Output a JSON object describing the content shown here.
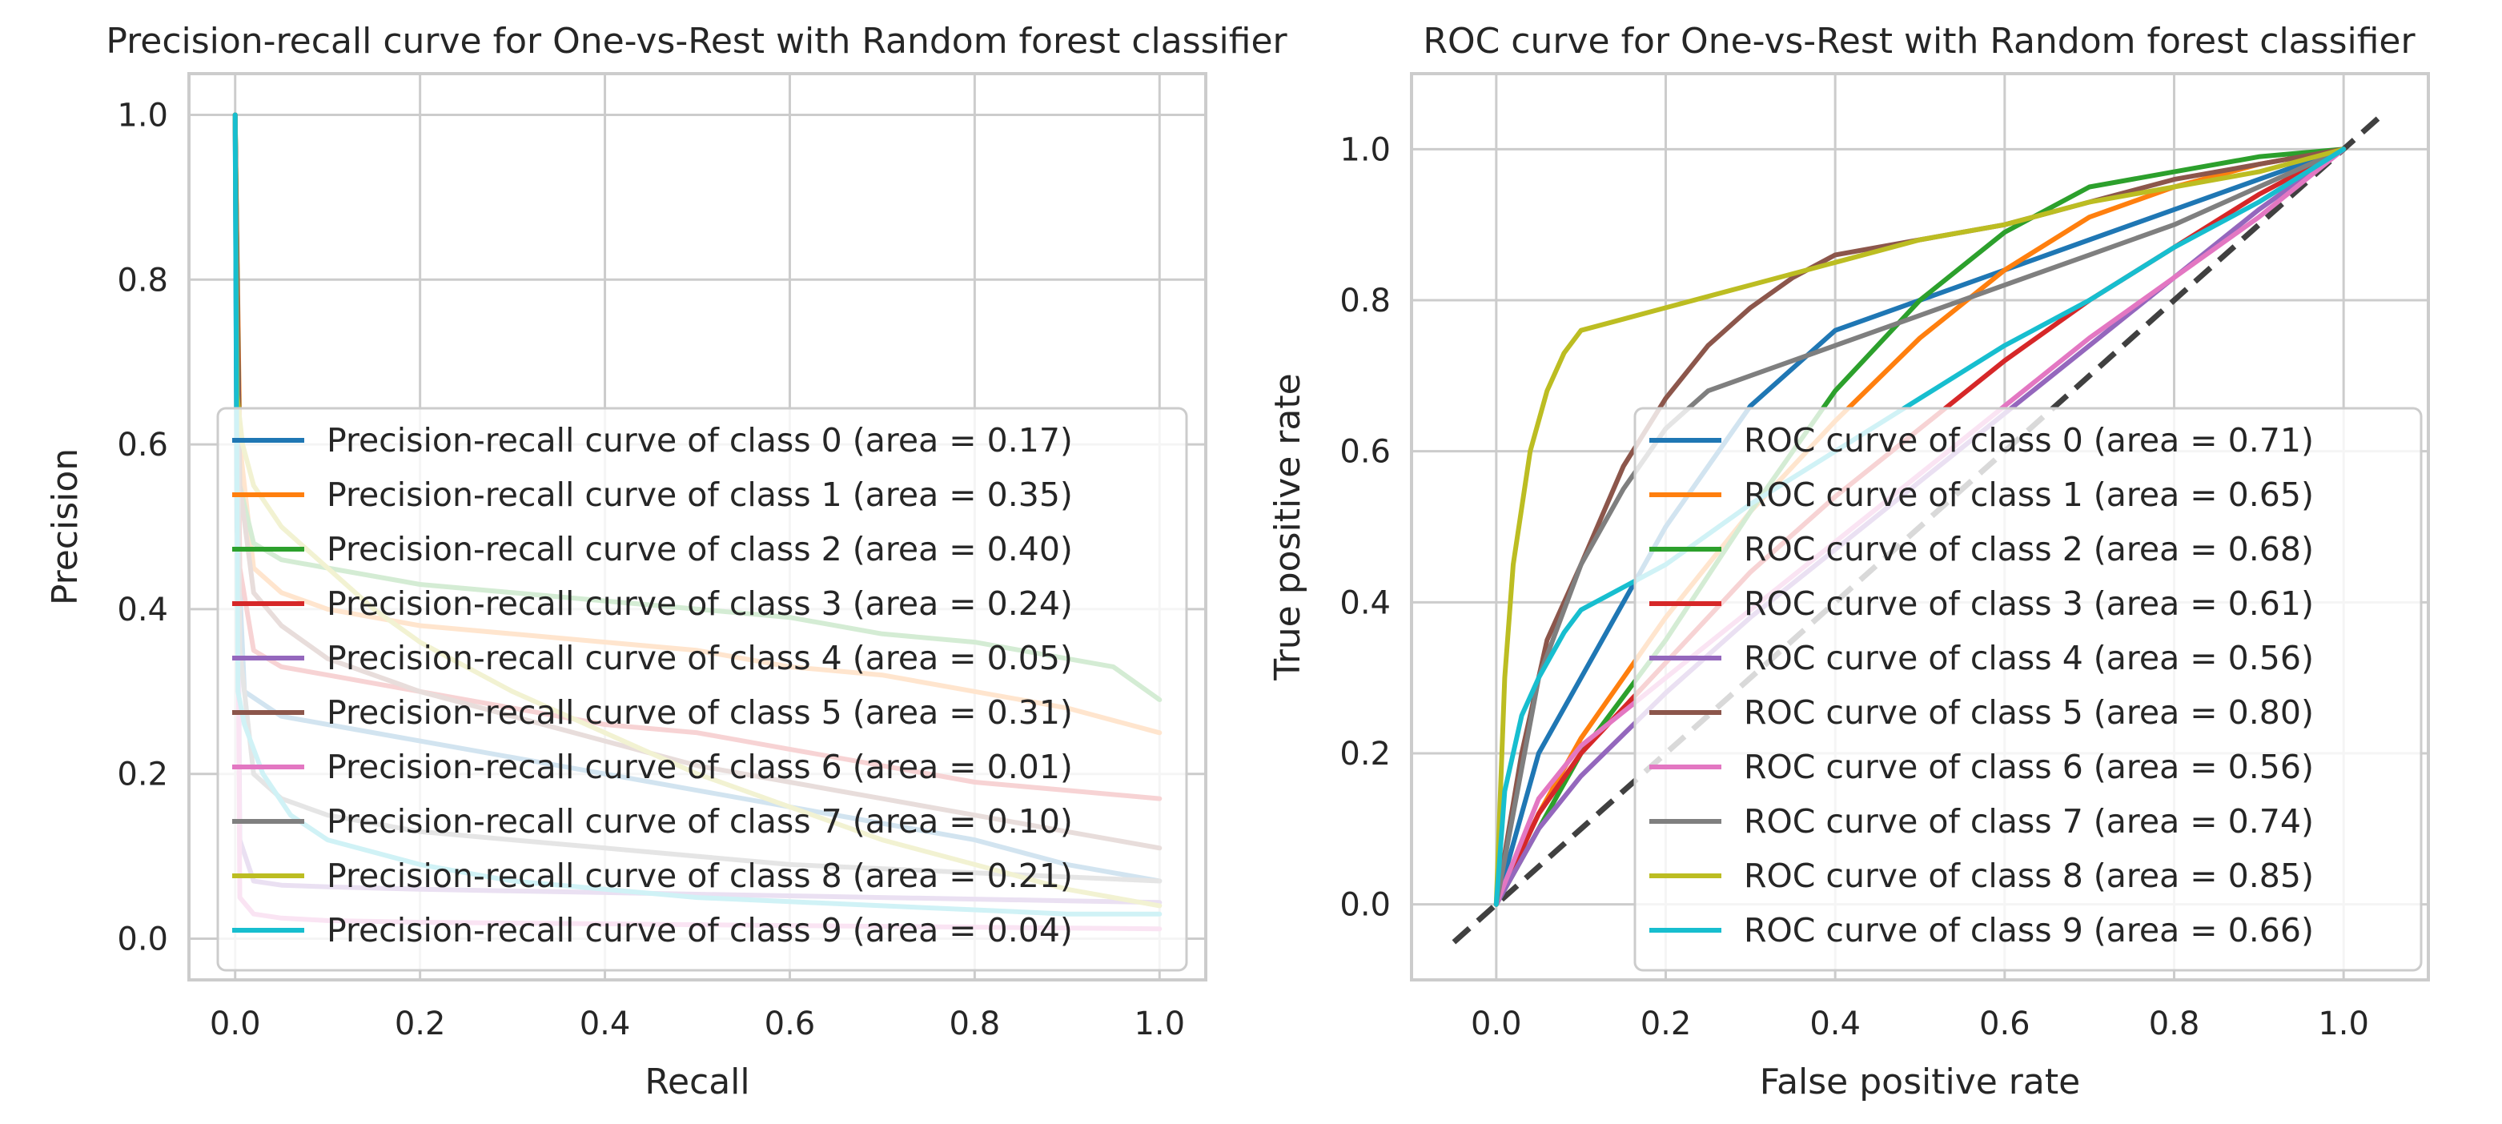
{
  "colors": {
    "class_0": "#1f77b4",
    "class_1": "#ff7f0e",
    "class_2": "#2ca02c",
    "class_3": "#d62728",
    "class_4": "#9467bd",
    "class_5": "#8c564b",
    "class_6": "#e377c2",
    "class_7": "#7f7f7f",
    "class_8": "#bcbd22",
    "class_9": "#17becf",
    "grid": "#cccccc",
    "frame": "#cccccc",
    "chance_line": "#404040"
  },
  "chart_data": [
    {
      "type": "line",
      "title": "Precision-recall curve for One-vs-Rest with Random forest classifier",
      "xlabel": "Recall",
      "ylabel": "Precision",
      "xlim": [
        -0.05,
        1.05
      ],
      "ylim": [
        -0.05,
        1.05
      ],
      "xticks": [
        "0.0",
        "0.2",
        "0.4",
        "0.6",
        "0.8",
        "1.0"
      ],
      "yticks": [
        "0.0",
        "0.2",
        "0.4",
        "0.6",
        "0.8",
        "1.0"
      ],
      "grid": true,
      "legend_position": "lower-right",
      "series": [
        {
          "name": "Precision-recall curve of class 0 (area = 0.17)",
          "x": [
            0,
            0.002,
            0.01,
            0.05,
            0.1,
            0.2,
            0.3,
            0.4,
            0.5,
            0.6,
            0.7,
            0.8,
            0.9,
            1.0
          ],
          "y": [
            1.0,
            0.5,
            0.3,
            0.27,
            0.26,
            0.24,
            0.22,
            0.2,
            0.18,
            0.16,
            0.14,
            0.12,
            0.09,
            0.07
          ]
        },
        {
          "name": "Precision-recall curve of class 1 (area = 0.35)",
          "x": [
            0,
            0.005,
            0.02,
            0.05,
            0.1,
            0.2,
            0.3,
            0.4,
            0.5,
            0.6,
            0.7,
            0.8,
            0.9,
            1.0
          ],
          "y": [
            1.0,
            0.6,
            0.45,
            0.42,
            0.4,
            0.38,
            0.37,
            0.36,
            0.35,
            0.33,
            0.32,
            0.3,
            0.28,
            0.25
          ]
        },
        {
          "name": "Precision-recall curve of class 2 (area = 0.40)",
          "x": [
            0,
            0.005,
            0.02,
            0.05,
            0.1,
            0.2,
            0.3,
            0.4,
            0.5,
            0.6,
            0.7,
            0.8,
            0.9,
            0.95,
            1.0
          ],
          "y": [
            1.0,
            0.55,
            0.48,
            0.46,
            0.45,
            0.43,
            0.42,
            0.41,
            0.4,
            0.39,
            0.37,
            0.36,
            0.34,
            0.33,
            0.29
          ]
        },
        {
          "name": "Precision-recall curve of class 3 (area = 0.24)",
          "x": [
            0,
            0.005,
            0.02,
            0.05,
            0.1,
            0.2,
            0.3,
            0.4,
            0.5,
            0.6,
            0.7,
            0.8,
            0.9,
            1.0
          ],
          "y": [
            1.0,
            0.45,
            0.35,
            0.33,
            0.32,
            0.3,
            0.28,
            0.26,
            0.25,
            0.23,
            0.21,
            0.19,
            0.18,
            0.17
          ]
        },
        {
          "name": "Precision-recall curve of class 4 (area = 0.05)",
          "x": [
            0,
            0.005,
            0.02,
            0.05,
            0.1,
            0.2,
            0.3,
            0.4,
            0.5,
            0.6,
            0.7,
            0.8,
            0.9,
            1.0
          ],
          "y": [
            1.0,
            0.12,
            0.07,
            0.065,
            0.063,
            0.06,
            0.058,
            0.056,
            0.054,
            0.052,
            0.05,
            0.048,
            0.046,
            0.044
          ]
        },
        {
          "name": "Precision-recall curve of class 5 (area = 0.31)",
          "x": [
            0,
            0.005,
            0.02,
            0.05,
            0.1,
            0.2,
            0.3,
            0.4,
            0.5,
            0.6,
            0.7,
            0.8,
            0.9,
            1.0
          ],
          "y": [
            1.0,
            0.55,
            0.42,
            0.38,
            0.34,
            0.3,
            0.27,
            0.24,
            0.21,
            0.19,
            0.17,
            0.15,
            0.13,
            0.11
          ]
        },
        {
          "name": "Precision-recall curve of class 6 (area = 0.01)",
          "x": [
            0,
            0.005,
            0.02,
            0.05,
            0.1,
            0.2,
            0.3,
            0.4,
            0.5,
            0.6,
            0.7,
            0.8,
            0.9,
            1.0
          ],
          "y": [
            1.0,
            0.05,
            0.03,
            0.025,
            0.022,
            0.02,
            0.019,
            0.018,
            0.017,
            0.016,
            0.015,
            0.014,
            0.013,
            0.012
          ]
        },
        {
          "name": "Precision-recall curve of class 7 (area = 0.10)",
          "x": [
            0,
            0.005,
            0.02,
            0.05,
            0.1,
            0.2,
            0.3,
            0.4,
            0.5,
            0.6,
            0.7,
            0.8,
            0.9,
            1.0
          ],
          "y": [
            1.0,
            0.35,
            0.2,
            0.17,
            0.15,
            0.13,
            0.12,
            0.11,
            0.1,
            0.09,
            0.085,
            0.08,
            0.075,
            0.07
          ]
        },
        {
          "name": "Precision-recall curve of class 8 (area = 0.21)",
          "x": [
            0,
            0.002,
            0.008,
            0.02,
            0.05,
            0.1,
            0.15,
            0.2,
            0.3,
            0.4,
            0.5,
            0.6,
            0.7,
            0.8,
            0.9,
            1.0
          ],
          "y": [
            1.0,
            0.66,
            0.6,
            0.55,
            0.5,
            0.45,
            0.4,
            0.36,
            0.3,
            0.25,
            0.2,
            0.16,
            0.12,
            0.09,
            0.06,
            0.04
          ]
        },
        {
          "name": "Precision-recall curve of class 9 (area = 0.04)",
          "x": [
            0,
            0.003,
            0.01,
            0.03,
            0.06,
            0.1,
            0.2,
            0.3,
            0.4,
            0.5,
            0.6,
            0.7,
            0.8,
            0.9,
            1.0
          ],
          "y": [
            1.0,
            0.3,
            0.26,
            0.2,
            0.15,
            0.12,
            0.09,
            0.07,
            0.06,
            0.05,
            0.045,
            0.04,
            0.035,
            0.03,
            0.03
          ]
        }
      ]
    },
    {
      "type": "line",
      "title": "ROC curve for One-vs-Rest with Random forest classifier",
      "xlabel": "False positive rate",
      "ylabel": "True positive rate",
      "xlim": [
        -0.1,
        1.1
      ],
      "ylim": [
        -0.1,
        1.1
      ],
      "xticks": [
        "0.0",
        "0.2",
        "0.4",
        "0.6",
        "0.8",
        "1.0"
      ],
      "yticks": [
        "0.0",
        "0.2",
        "0.4",
        "0.6",
        "0.8",
        "1.0"
      ],
      "grid": true,
      "legend_position": "lower-right",
      "chance_line": {
        "x": [
          -0.05,
          1.05
        ],
        "y": [
          -0.05,
          1.05
        ],
        "style": "dashed"
      },
      "series": [
        {
          "name": "ROC curve of class 0 (area = 0.71)",
          "x": [
            0,
            0.05,
            0.1,
            0.2,
            0.3,
            0.4,
            0.5,
            0.6,
            0.7,
            0.8,
            0.9,
            1.0
          ],
          "y": [
            0,
            0.2,
            0.3,
            0.5,
            0.66,
            0.76,
            0.8,
            0.84,
            0.88,
            0.92,
            0.96,
            1.0
          ]
        },
        {
          "name": "ROC curve of class 1 (area = 0.65)",
          "x": [
            0,
            0.05,
            0.1,
            0.2,
            0.3,
            0.4,
            0.5,
            0.6,
            0.7,
            0.8,
            0.9,
            1.0
          ],
          "y": [
            0,
            0.12,
            0.22,
            0.38,
            0.52,
            0.64,
            0.75,
            0.84,
            0.91,
            0.95,
            0.98,
            1.0
          ]
        },
        {
          "name": "ROC curve of class 2 (area = 0.68)",
          "x": [
            0,
            0.05,
            0.1,
            0.2,
            0.3,
            0.4,
            0.5,
            0.6,
            0.7,
            0.8,
            0.9,
            1.0
          ],
          "y": [
            0,
            0.1,
            0.2,
            0.35,
            0.52,
            0.68,
            0.8,
            0.89,
            0.95,
            0.97,
            0.99,
            1.0
          ]
        },
        {
          "name": "ROC curve of class 3 (area = 0.61)",
          "x": [
            0,
            0.05,
            0.1,
            0.2,
            0.3,
            0.4,
            0.5,
            0.6,
            0.7,
            0.8,
            0.9,
            1.0
          ],
          "y": [
            0,
            0.12,
            0.2,
            0.32,
            0.44,
            0.54,
            0.63,
            0.72,
            0.8,
            0.87,
            0.94,
            1.0
          ]
        },
        {
          "name": "ROC curve of class 4 (area = 0.56)",
          "x": [
            0,
            0.05,
            0.1,
            0.2,
            0.3,
            0.4,
            0.5,
            0.6,
            0.7,
            0.8,
            0.9,
            1.0
          ],
          "y": [
            0,
            0.1,
            0.17,
            0.28,
            0.38,
            0.47,
            0.56,
            0.65,
            0.74,
            0.83,
            0.92,
            1.0
          ]
        },
        {
          "name": "ROC curve of class 5 (area = 0.80)",
          "x": [
            0,
            0.03,
            0.06,
            0.1,
            0.15,
            0.2,
            0.25,
            0.3,
            0.35,
            0.4,
            0.5,
            0.6,
            0.7,
            0.8,
            0.9,
            1.0
          ],
          "y": [
            0,
            0.2,
            0.35,
            0.45,
            0.58,
            0.67,
            0.74,
            0.79,
            0.83,
            0.86,
            0.88,
            0.9,
            0.93,
            0.96,
            0.98,
            1.0
          ]
        },
        {
          "name": "ROC curve of class 6 (area = 0.56)",
          "x": [
            0,
            0.05,
            0.1,
            0.2,
            0.3,
            0.4,
            0.5,
            0.6,
            0.7,
            0.8,
            0.9,
            1.0
          ],
          "y": [
            0,
            0.14,
            0.21,
            0.3,
            0.39,
            0.48,
            0.57,
            0.66,
            0.75,
            0.83,
            0.91,
            1.0
          ]
        },
        {
          "name": "ROC curve of class 7 (area = 0.74)",
          "x": [
            0,
            0.05,
            0.1,
            0.15,
            0.2,
            0.25,
            0.3,
            0.4,
            0.5,
            0.6,
            0.7,
            0.8,
            0.9,
            1.0
          ],
          "y": [
            0,
            0.3,
            0.45,
            0.55,
            0.63,
            0.68,
            0.7,
            0.74,
            0.78,
            0.82,
            0.86,
            0.9,
            0.95,
            1.0
          ]
        },
        {
          "name": "ROC curve of class 8 (area = 0.85)",
          "x": [
            0,
            0.01,
            0.02,
            0.04,
            0.06,
            0.08,
            0.1,
            0.2,
            0.3,
            0.4,
            0.5,
            0.6,
            0.7,
            0.8,
            0.9,
            1.0
          ],
          "y": [
            0,
            0.3,
            0.45,
            0.6,
            0.68,
            0.73,
            0.76,
            0.79,
            0.82,
            0.85,
            0.88,
            0.9,
            0.93,
            0.95,
            0.97,
            1.0
          ]
        },
        {
          "name": "ROC curve of class 9 (area = 0.66)",
          "x": [
            0,
            0.01,
            0.03,
            0.05,
            0.08,
            0.1,
            0.2,
            0.3,
            0.4,
            0.5,
            0.6,
            0.7,
            0.8,
            0.9,
            1.0
          ],
          "y": [
            0,
            0.15,
            0.25,
            0.3,
            0.36,
            0.39,
            0.45,
            0.53,
            0.6,
            0.67,
            0.74,
            0.8,
            0.87,
            0.93,
            1.0
          ]
        }
      ]
    }
  ]
}
